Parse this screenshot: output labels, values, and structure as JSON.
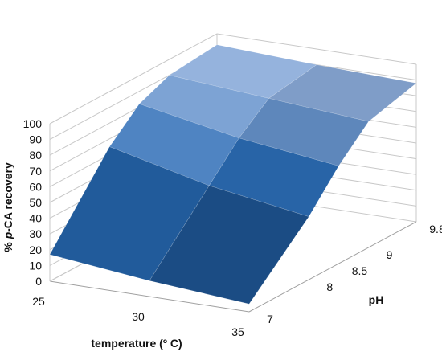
{
  "chart_data": {
    "type": "surface",
    "xlabel": "temperature (º C)",
    "ylabel": "pH",
    "zlabel": "% p-CA recovery",
    "zlabel_parts": [
      "% ",
      "p",
      "-CA recovery"
    ],
    "x": [
      25,
      30,
      35
    ],
    "x_tick_labels": [
      "25",
      "30",
      "35"
    ],
    "y": [
      7,
      8,
      8.5,
      9,
      9.8
    ],
    "y_tick_labels": [
      "7",
      "8",
      "8.5",
      "9",
      "9.8"
    ],
    "z_ticks": [
      0,
      10,
      20,
      30,
      40,
      50,
      60,
      70,
      80,
      90,
      100
    ],
    "z_tick_labels": [
      "0",
      "10",
      "20",
      "30",
      "40",
      "50",
      "60",
      "70",
      "80",
      "90",
      "100"
    ],
    "zlim": [
      0,
      100
    ],
    "grid": true,
    "legend": "none",
    "values": [
      [
        17,
        65,
        82,
        90,
        93
      ],
      [
        10,
        50,
        70,
        85,
        90
      ],
      [
        5,
        40,
        62,
        80,
        88
      ]
    ],
    "colors": {
      "low": "#123d6e",
      "mid": "#2a6cb4",
      "high": "#b6c8ea",
      "grid": "#c8c8c8",
      "axis": "#a0a0a0"
    }
  }
}
